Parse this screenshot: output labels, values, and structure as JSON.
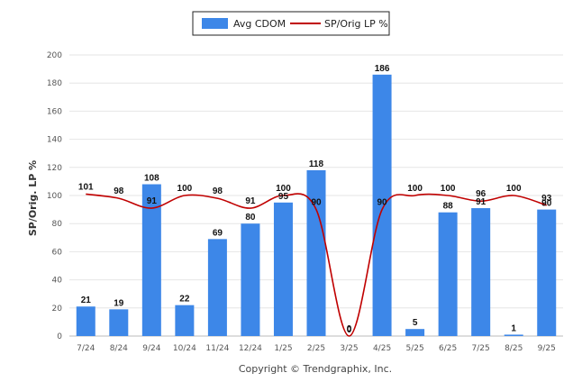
{
  "chart_data": {
    "type": "bar",
    "title": "",
    "xlabel": "",
    "ylabel": "SP/Orig. LP %",
    "ylim": [
      0,
      200
    ],
    "yticks": [
      0,
      20,
      40,
      60,
      80,
      100,
      120,
      140,
      160,
      180,
      200
    ],
    "categories": [
      "7/24",
      "8/24",
      "9/24",
      "10/24",
      "11/24",
      "12/24",
      "1/25",
      "2/25",
      "3/25",
      "4/25",
      "5/25",
      "6/25",
      "7/25",
      "8/25",
      "9/25"
    ],
    "series": [
      {
        "name": "Avg CDOM",
        "kind": "bar",
        "color": "#3d87e8",
        "values": [
          21,
          19,
          108,
          22,
          69,
          80,
          95,
          118,
          0,
          186,
          5,
          88,
          91,
          1,
          90
        ],
        "labels": [
          "21",
          "19",
          "108",
          "22",
          "69",
          "80",
          "95",
          "118",
          "0",
          "186",
          "5",
          "88",
          "91",
          "1",
          "90"
        ]
      },
      {
        "name": "SP/Orig LP %",
        "kind": "line",
        "color": "#c00000",
        "values": [
          101,
          98,
          91,
          100,
          98,
          91,
          100,
          90,
          0,
          90,
          100,
          100,
          96,
          100,
          93
        ],
        "labels": [
          "101",
          "98",
          "91",
          "100",
          "98",
          "91",
          "100",
          "90",
          "0",
          "90",
          "100",
          "100",
          "96",
          "100",
          "93"
        ]
      }
    ],
    "legend": "top-center",
    "grid": true
  },
  "footer": {
    "text": "Copyright © Trendgraphix, Inc."
  }
}
